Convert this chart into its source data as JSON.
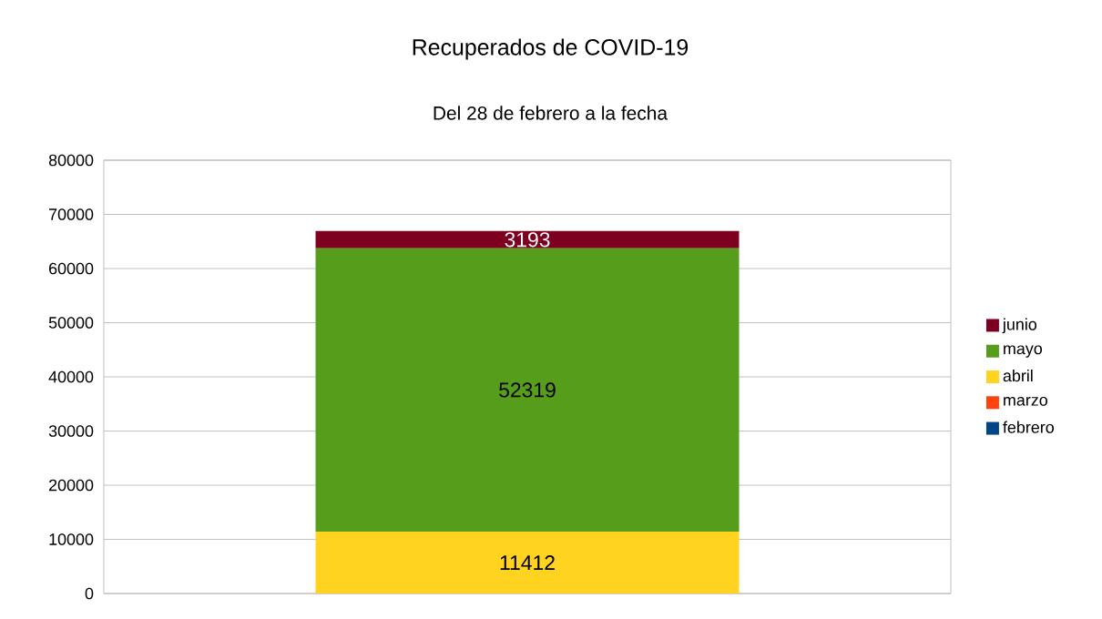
{
  "chart_data": {
    "type": "bar",
    "title": "Recuperados de COVID-19",
    "subtitle": "Del 28 de febrero a la fecha",
    "categories": [
      null
    ],
    "stacked": true,
    "series": [
      {
        "name": "febrero",
        "color": "#004586",
        "values": [
          0
        ],
        "value_labels": [
          null
        ]
      },
      {
        "name": "marzo",
        "color": "#ff420e",
        "values": [
          0
        ],
        "value_labels": [
          null
        ]
      },
      {
        "name": "abril",
        "color": "#ffd320",
        "values": [
          11412
        ],
        "value_labels": [
          "11412"
        ]
      },
      {
        "name": "mayo",
        "color": "#579d1c",
        "values": [
          52319
        ],
        "value_labels": [
          "52319"
        ]
      },
      {
        "name": "junio",
        "color": "#7e0021",
        "values": [
          3193
        ],
        "value_labels": [
          "3193"
        ]
      }
    ],
    "ylim": [
      0,
      80000
    ],
    "yticks": [
      0,
      10000,
      20000,
      30000,
      40000,
      50000,
      60000,
      70000,
      80000
    ],
    "grid": "y",
    "legend": "right"
  }
}
